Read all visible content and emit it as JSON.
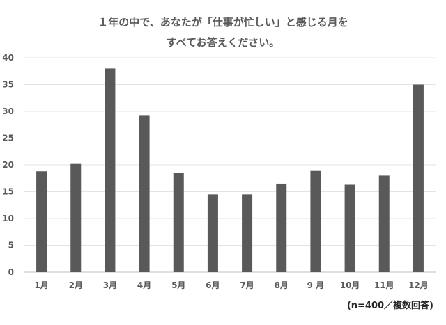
{
  "chart_data": {
    "type": "bar",
    "title_line1": "１年の中で、あなたが「仕事が忙しい」と感じる月を",
    "title_line2": "すべてお答えください。",
    "categories": [
      "1月",
      "2月",
      "3月",
      "4月",
      "5月",
      "6月",
      "7月",
      "8月",
      "9 月",
      "10月",
      "11月",
      "12月"
    ],
    "values": [
      18.8,
      20.3,
      38.0,
      29.3,
      18.5,
      14.5,
      14.5,
      16.5,
      19.0,
      16.3,
      18.0,
      35.0
    ],
    "ylim": [
      0,
      40
    ],
    "yticks": [
      0,
      5,
      10,
      15,
      20,
      25,
      30,
      35,
      40
    ],
    "grid": true,
    "bar_color": "#595959",
    "note": "(n=400／複数回答)"
  }
}
